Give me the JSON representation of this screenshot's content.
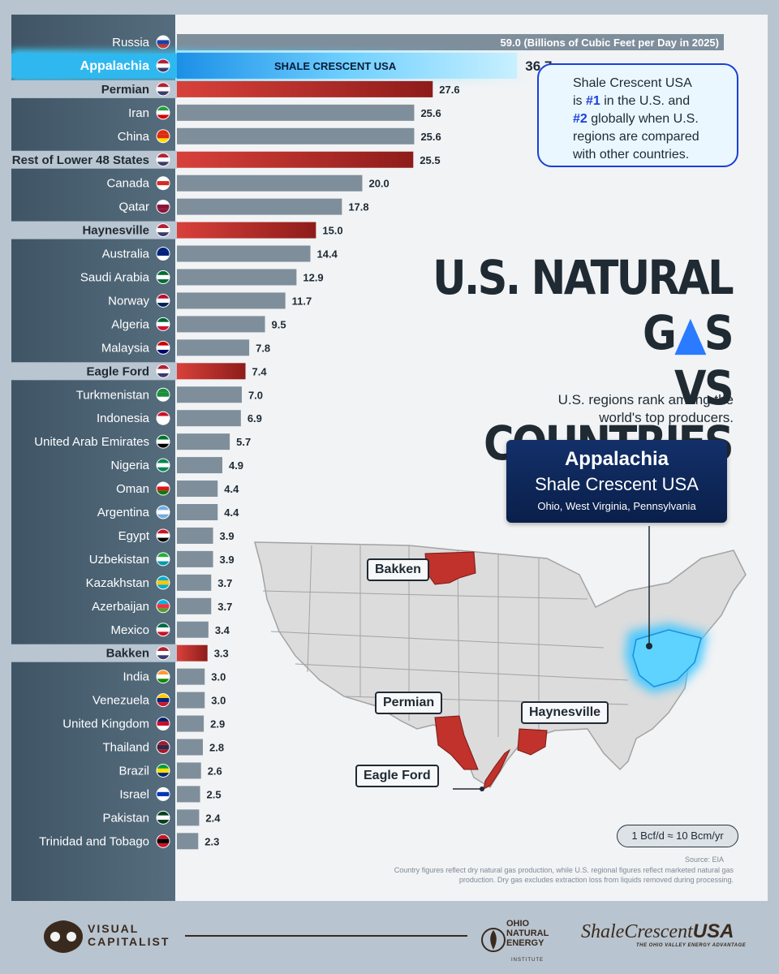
{
  "chart_data": {
    "type": "bar",
    "orientation": "horizontal",
    "unit_label": "(Billions of Cubic Feet per Day in 2025)",
    "series": [
      {
        "values": [
          {
            "label": "Russia",
            "value": 59.0,
            "kind": "country",
            "flag": "russia-flag"
          },
          {
            "label": "Appalachia",
            "value": 36.7,
            "kind": "appalachia",
            "flag": "us-flag",
            "bar_text": "SHALE CRESCENT USA"
          },
          {
            "label": "Permian",
            "value": 27.6,
            "kind": "us",
            "flag": "us-flag"
          },
          {
            "label": "Iran",
            "value": 25.6,
            "kind": "country",
            "flag": "iran-flag"
          },
          {
            "label": "China",
            "value": 25.6,
            "kind": "country",
            "flag": "china-flag"
          },
          {
            "label": "Rest of Lower 48 States",
            "value": 25.5,
            "kind": "us",
            "flag": "us-flag"
          },
          {
            "label": "Canada",
            "value": 20.0,
            "kind": "country",
            "flag": "canada-flag"
          },
          {
            "label": "Qatar",
            "value": 17.8,
            "kind": "country",
            "flag": "qatar-flag"
          },
          {
            "label": "Haynesville",
            "value": 15.0,
            "kind": "us",
            "flag": "us-flag"
          },
          {
            "label": "Australia",
            "value": 14.4,
            "kind": "country",
            "flag": "australia-flag"
          },
          {
            "label": "Saudi Arabia",
            "value": 12.9,
            "kind": "country",
            "flag": "saudi-arabia-flag"
          },
          {
            "label": "Norway",
            "value": 11.7,
            "kind": "country",
            "flag": "norway-flag"
          },
          {
            "label": "Algeria",
            "value": 9.5,
            "kind": "country",
            "flag": "algeria-flag"
          },
          {
            "label": "Malaysia",
            "value": 7.8,
            "kind": "country",
            "flag": "malaysia-flag"
          },
          {
            "label": "Eagle Ford",
            "value": 7.4,
            "kind": "us",
            "flag": "us-flag"
          },
          {
            "label": "Turkmenistan",
            "value": 7.0,
            "kind": "country",
            "flag": "turkmenistan-flag"
          },
          {
            "label": "Indonesia",
            "value": 6.9,
            "kind": "country",
            "flag": "indonesia-flag"
          },
          {
            "label": "United Arab Emirates",
            "value": 5.7,
            "kind": "country",
            "flag": "uae-flag"
          },
          {
            "label": "Nigeria",
            "value": 4.9,
            "kind": "country",
            "flag": "nigeria-flag"
          },
          {
            "label": "Oman",
            "value": 4.4,
            "kind": "country",
            "flag": "oman-flag"
          },
          {
            "label": "Argentina",
            "value": 4.4,
            "kind": "country",
            "flag": "argentina-flag"
          },
          {
            "label": "Egypt",
            "value": 3.9,
            "kind": "country",
            "flag": "egypt-flag"
          },
          {
            "label": "Uzbekistan",
            "value": 3.9,
            "kind": "country",
            "flag": "uzbekistan-flag"
          },
          {
            "label": "Kazakhstan",
            "value": 3.7,
            "kind": "country",
            "flag": "kazakhstan-flag"
          },
          {
            "label": "Azerbaijan",
            "value": 3.7,
            "kind": "country",
            "flag": "azerbaijan-flag"
          },
          {
            "label": "Mexico",
            "value": 3.4,
            "kind": "country",
            "flag": "mexico-flag"
          },
          {
            "label": "Bakken",
            "value": 3.3,
            "kind": "us",
            "flag": "us-flag"
          },
          {
            "label": "India",
            "value": 3.0,
            "kind": "country",
            "flag": "india-flag"
          },
          {
            "label": "Venezuela",
            "value": 3.0,
            "kind": "country",
            "flag": "venezuela-flag"
          },
          {
            "label": "United Kingdom",
            "value": 2.9,
            "kind": "country",
            "flag": "uk-flag"
          },
          {
            "label": "Thailand",
            "value": 2.8,
            "kind": "country",
            "flag": "thailand-flag"
          },
          {
            "label": "Brazil",
            "value": 2.6,
            "kind": "country",
            "flag": "brazil-flag"
          },
          {
            "label": "Israel",
            "value": 2.5,
            "kind": "country",
            "flag": "israel-flag"
          },
          {
            "label": "Pakistan",
            "value": 2.4,
            "kind": "country",
            "flag": "pakistan-flag"
          },
          {
            "label": "Trinidad and Tobago",
            "value": 2.3,
            "kind": "country",
            "flag": "trinidad-and-tobago-flag"
          }
        ]
      }
    ],
    "colors": {
      "country_bar": "#7f8e9b",
      "us_bar": "#b42a26",
      "appalachia_bar": "#4fb8f3"
    },
    "xlim": [
      0,
      59.0
    ]
  },
  "callout": {
    "line1": "Shale Crescent USA",
    "line2_pre": "is ",
    "line2_hl": "#1",
    "line2_post": " in the U.S. and",
    "line3_hl": "#2",
    "line3_post": " globally when U.S.",
    "line4": "regions are compared",
    "line5": "with other countries."
  },
  "title": {
    "line1_a": "U.S. NATURAL G",
    "line1_b": "S",
    "line2": "VS COUNTRIES",
    "flame_icon": "flame-icon"
  },
  "subtitle": {
    "line1": "U.S. regions rank among the",
    "line2": "world's top producers."
  },
  "appalachia_box": {
    "title": "Appalachia",
    "subtitle": "Shale Crescent USA",
    "states": "Ohio, West Virginia, Pennsylvania"
  },
  "map_labels": {
    "bakken": "Bakken",
    "permian": "Permian",
    "haynesville": "Haynesville",
    "eagle_ford": "Eagle Ford"
  },
  "conversion": "1 Bcf/d ≈ 10 Bcm/yr",
  "source": "Source: EIA",
  "note": "Country figures reflect dry natural gas production, while U.S. regional figures reflect marketed natural gas production. Dry gas excludes extraction loss from liquids removed during processing.",
  "footer": {
    "vc_line1": "VISUAL",
    "vc_line2": "CAPITALIST",
    "one_line1": "OHIO",
    "one_line2": "NATURAL",
    "one_line3": "ENERGY",
    "one_line4": "INSTITUTE",
    "sc_part1": "Shale",
    "sc_part2": "Crescent",
    "sc_part3": "USA",
    "sc_tagline": "THE OHIO VALLEY ENERGY ADVANTAGE"
  }
}
